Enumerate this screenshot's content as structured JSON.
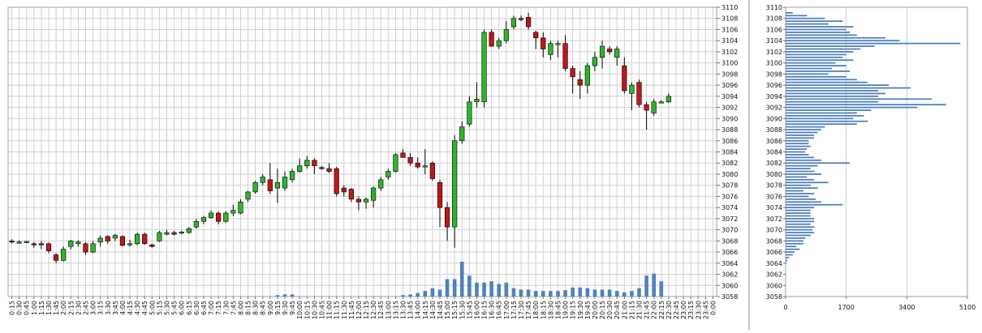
{
  "main_chart": {
    "y_ticks": [
      "3110",
      "3108",
      "3106",
      "3104",
      "3102",
      "3100",
      "3098",
      "3096",
      "3094",
      "3092",
      "3090",
      "3088",
      "3086",
      "3084",
      "3082",
      "3080",
      "3078",
      "3076",
      "3074",
      "3072",
      "3070",
      "3068",
      "3066",
      "3064",
      "3062",
      "3060",
      "3058"
    ],
    "x_tick_labels": [
      "0:15",
      "0:30",
      "0:45",
      "1:00",
      "1:15",
      "1:30",
      "1:45",
      "2:00",
      "2:15",
      "2:30",
      "2:45",
      "3:00",
      "3:15",
      "3:30",
      "3:45",
      "4:00",
      "4:15",
      "4:30",
      "4:45",
      "5:00",
      "5:15",
      "5:30",
      "5:45",
      "6:00",
      "6:15",
      "6:30",
      "6:45",
      "7:00",
      "7:15",
      "7:30",
      "7:45",
      "8:00",
      "8:15",
      "8:30",
      "8:45",
      "9:00",
      "9:15",
      "9:30",
      "9:45",
      "10:00",
      "10:15",
      "10:30",
      "10:45",
      "11:00",
      "11:15",
      "11:30",
      "11:45",
      "12:00",
      "12:15",
      "12:30",
      "12:45",
      "13:00",
      "13:15",
      "13:30",
      "13:45",
      "14:00",
      "14:15",
      "14:30",
      "14:45",
      "15:00",
      "15:15",
      "15:30",
      "15:45",
      "16:00",
      "16:15",
      "16:30",
      "16:45",
      "17:00",
      "17:15",
      "17:30",
      "17:45",
      "18:00",
      "18:15",
      "18:30",
      "18:45",
      "19:00",
      "19:15",
      "19:30",
      "19:45",
      "20:00",
      "20:15",
      "20:30",
      "20:45",
      "21:00",
      "21:15",
      "21:30",
      "21:45",
      "22:00",
      "22:15",
      "22:30",
      "22:45",
      "23:00",
      "23:15",
      "23:30",
      "23:45",
      "0:00"
    ]
  },
  "profile_chart": {
    "y_ticks": [
      "3110",
      "3108",
      "3106",
      "3104",
      "3102",
      "3100",
      "3098",
      "3096",
      "3094",
      "3092",
      "3090",
      "3088",
      "3086",
      "3084",
      "3082",
      "3080",
      "3078",
      "3076",
      "3074",
      "3072",
      "3070",
      "3068",
      "3066",
      "3064",
      "3062",
      "3060",
      "3058"
    ],
    "x_ticks": [
      "0",
      "1700",
      "3400",
      "5100"
    ]
  },
  "colors": {
    "up": "#2db52d",
    "down": "#c0161a",
    "volume": "#4f81bd",
    "grid": "#d0d0d0"
  },
  "chart_data": [
    {
      "type": "candlestick",
      "y_range": [
        3058,
        3110
      ],
      "candles": [
        {
          "x": "0:15",
          "o": 3068,
          "h": 3068.3,
          "l": 3067.5,
          "c": 3067.8
        },
        {
          "x": "0:30",
          "o": 3067.8,
          "h": 3068.1,
          "l": 3067.5,
          "c": 3067.8
        },
        {
          "x": "0:45",
          "o": 3067.8,
          "h": 3068,
          "l": 3067.6,
          "c": 3067.9
        },
        {
          "x": "1:00",
          "o": 3067.5,
          "h": 3067.8,
          "l": 3066.8,
          "c": 3067.3
        },
        {
          "x": "1:15",
          "o": 3067.5,
          "h": 3068,
          "l": 3066.5,
          "c": 3067.3
        },
        {
          "x": "1:30",
          "o": 3067.5,
          "h": 3067.7,
          "l": 3065.8,
          "c": 3066.2
        },
        {
          "x": "1:45",
          "o": 3065.5,
          "h": 3065.8,
          "l": 3064,
          "c": 3064.5
        },
        {
          "x": "2:00",
          "o": 3064.5,
          "h": 3067,
          "l": 3064.3,
          "c": 3066.5
        },
        {
          "x": "2:15",
          "o": 3067,
          "h": 3068.2,
          "l": 3066.5,
          "c": 3068
        },
        {
          "x": "2:30",
          "o": 3067.5,
          "h": 3068.1,
          "l": 3067,
          "c": 3067.8
        },
        {
          "x": "2:45",
          "o": 3067.5,
          "h": 3067.8,
          "l": 3065.5,
          "c": 3066
        },
        {
          "x": "3:00",
          "o": 3066,
          "h": 3068,
          "l": 3065.8,
          "c": 3067.5
        },
        {
          "x": "3:15",
          "o": 3067.8,
          "h": 3069,
          "l": 3067,
          "c": 3068.5
        },
        {
          "x": "3:30",
          "o": 3068.8,
          "h": 3069,
          "l": 3067.5,
          "c": 3068
        },
        {
          "x": "3:45",
          "o": 3068.5,
          "h": 3069.3,
          "l": 3068,
          "c": 3069
        },
        {
          "x": "4:00",
          "o": 3068.8,
          "h": 3069,
          "l": 3067,
          "c": 3067.2
        },
        {
          "x": "4:15",
          "o": 3067.5,
          "h": 3068.2,
          "l": 3067,
          "c": 3067.5
        },
        {
          "x": "4:30",
          "o": 3067.5,
          "h": 3069.5,
          "l": 3067.2,
          "c": 3069.2
        },
        {
          "x": "4:45",
          "o": 3069.2,
          "h": 3069.5,
          "l": 3067.3,
          "c": 3067.5
        },
        {
          "x": "5:00",
          "o": 3067.3,
          "h": 3067.5,
          "l": 3066.8,
          "c": 3067
        },
        {
          "x": "5:15",
          "o": 3068,
          "h": 3069.8,
          "l": 3067.8,
          "c": 3069.5
        },
        {
          "x": "5:30",
          "o": 3069.2,
          "h": 3070,
          "l": 3069,
          "c": 3069.5
        },
        {
          "x": "5:45",
          "o": 3069.5,
          "h": 3069.8,
          "l": 3069,
          "c": 3069.2
        },
        {
          "x": "6:00",
          "o": 3069.5,
          "h": 3069.8,
          "l": 3069.2,
          "c": 3069.6
        },
        {
          "x": "6:15",
          "o": 3069.5,
          "h": 3070.5,
          "l": 3069.3,
          "c": 3070.2
        },
        {
          "x": "6:30",
          "o": 3070.5,
          "h": 3072,
          "l": 3070.2,
          "c": 3071.5
        },
        {
          "x": "6:45",
          "o": 3071.5,
          "h": 3072.5,
          "l": 3071,
          "c": 3072.2
        },
        {
          "x": "7:00",
          "o": 3072.2,
          "h": 3073.5,
          "l": 3072,
          "c": 3073
        },
        {
          "x": "7:15",
          "o": 3073,
          "h": 3073.3,
          "l": 3071,
          "c": 3071.5
        },
        {
          "x": "7:30",
          "o": 3071.5,
          "h": 3073.3,
          "l": 3071.3,
          "c": 3073
        },
        {
          "x": "7:45",
          "o": 3073,
          "h": 3074.5,
          "l": 3072.5,
          "c": 3073.5
        },
        {
          "x": "8:00",
          "o": 3073,
          "h": 3075.5,
          "l": 3072.8,
          "c": 3075
        },
        {
          "x": "8:15",
          "o": 3075.5,
          "h": 3077,
          "l": 3075,
          "c": 3076.8
        },
        {
          "x": "8:30",
          "o": 3076.8,
          "h": 3078.8,
          "l": 3076.5,
          "c": 3078.5
        },
        {
          "x": "8:45",
          "o": 3078.5,
          "h": 3080,
          "l": 3078,
          "c": 3079.5
        },
        {
          "x": "9:00",
          "o": 3079,
          "h": 3082,
          "l": 3076.5,
          "c": 3077
        },
        {
          "x": "9:15",
          "o": 3077.5,
          "h": 3081,
          "l": 3074.8,
          "c": 3078.5
        },
        {
          "x": "9:30",
          "o": 3077.5,
          "h": 3080.5,
          "l": 3077,
          "c": 3079.5
        },
        {
          "x": "9:45",
          "o": 3079,
          "h": 3081,
          "l": 3078.5,
          "c": 3080.5
        },
        {
          "x": "10:00",
          "o": 3080.5,
          "h": 3082.8,
          "l": 3080.3,
          "c": 3081.5
        },
        {
          "x": "10:15",
          "o": 3081.5,
          "h": 3083.3,
          "l": 3081,
          "c": 3082.5
        },
        {
          "x": "10:30",
          "o": 3082.5,
          "h": 3082.8,
          "l": 3080,
          "c": 3081.5
        },
        {
          "x": "10:45",
          "o": 3081.2,
          "h": 3081.5,
          "l": 3080.8,
          "c": 3081
        },
        {
          "x": "11:00",
          "o": 3081,
          "h": 3082,
          "l": 3080.2,
          "c": 3080.5
        },
        {
          "x": "11:15",
          "o": 3081,
          "h": 3081.3,
          "l": 3076,
          "c": 3076.5
        },
        {
          "x": "11:30",
          "o": 3077.5,
          "h": 3078,
          "l": 3076,
          "c": 3076.8
        },
        {
          "x": "11:45",
          "o": 3077.3,
          "h": 3077.5,
          "l": 3075,
          "c": 3075.5
        },
        {
          "x": "12:00",
          "o": 3075.5,
          "h": 3076,
          "l": 3073.5,
          "c": 3075
        },
        {
          "x": "12:15",
          "o": 3075,
          "h": 3075.8,
          "l": 3073.8,
          "c": 3075.5
        },
        {
          "x": "12:30",
          "o": 3075.3,
          "h": 3077.8,
          "l": 3074,
          "c": 3077.5
        },
        {
          "x": "12:45",
          "o": 3077.5,
          "h": 3079.5,
          "l": 3077,
          "c": 3079
        },
        {
          "x": "13:00",
          "o": 3079.5,
          "h": 3081,
          "l": 3079,
          "c": 3080.5
        },
        {
          "x": "13:15",
          "o": 3080.5,
          "h": 3083.8,
          "l": 3080.3,
          "c": 3083.5
        },
        {
          "x": "13:30",
          "o": 3083.8,
          "h": 3084.5,
          "l": 3083,
          "c": 3083
        },
        {
          "x": "13:45",
          "o": 3083,
          "h": 3083.8,
          "l": 3081.5,
          "c": 3082
        },
        {
          "x": "14:00",
          "o": 3082,
          "h": 3083,
          "l": 3081,
          "c": 3081.3
        },
        {
          "x": "14:15",
          "o": 3081.5,
          "h": 3084.5,
          "l": 3080,
          "c": 3081.5
        },
        {
          "x": "14:30",
          "o": 3082,
          "h": 3082.3,
          "l": 3078.8,
          "c": 3079.2
        },
        {
          "x": "14:45",
          "o": 3078.5,
          "h": 3079,
          "l": 3070.5,
          "c": 3074
        },
        {
          "x": "15:00",
          "o": 3074,
          "h": 3075,
          "l": 3068,
          "c": 3070.5
        },
        {
          "x": "15:15",
          "o": 3070.5,
          "h": 3087,
          "l": 3066.8,
          "c": 3086
        },
        {
          "x": "15:30",
          "o": 3086,
          "h": 3089.5,
          "l": 3085.5,
          "c": 3088.5
        },
        {
          "x": "15:45",
          "o": 3089,
          "h": 3094,
          "l": 3088.5,
          "c": 3093
        },
        {
          "x": "16:00",
          "o": 3093,
          "h": 3096.5,
          "l": 3092,
          "c": 3093.5
        },
        {
          "x": "16:15",
          "o": 3093,
          "h": 3106,
          "l": 3092,
          "c": 3105.5
        },
        {
          "x": "16:30",
          "o": 3105.5,
          "h": 3106,
          "l": 3103,
          "c": 3103
        },
        {
          "x": "16:45",
          "o": 3103,
          "h": 3104.5,
          "l": 3102.5,
          "c": 3104
        },
        {
          "x": "17:00",
          "o": 3104,
          "h": 3107.5,
          "l": 3103.5,
          "c": 3106
        },
        {
          "x": "17:15",
          "o": 3106.5,
          "h": 3108.5,
          "l": 3106,
          "c": 3108
        },
        {
          "x": "17:30",
          "o": 3108,
          "h": 3108.5,
          "l": 3107.5,
          "c": 3107.8
        },
        {
          "x": "17:45",
          "o": 3108.2,
          "h": 3109,
          "l": 3106,
          "c": 3106.5
        },
        {
          "x": "18:00",
          "o": 3105.5,
          "h": 3105.8,
          "l": 3102.5,
          "c": 3104.5
        },
        {
          "x": "18:15",
          "o": 3104.5,
          "h": 3105.5,
          "l": 3101,
          "c": 3102.5
        },
        {
          "x": "18:30",
          "o": 3101.5,
          "h": 3104,
          "l": 3100.5,
          "c": 3103.5
        },
        {
          "x": "18:45",
          "o": 3103.5,
          "h": 3104,
          "l": 3101,
          "c": 3103.5
        },
        {
          "x": "19:00",
          "o": 3103.5,
          "h": 3105,
          "l": 3098.5,
          "c": 3099
        },
        {
          "x": "19:15",
          "o": 3099,
          "h": 3099.5,
          "l": 3094.5,
          "c": 3097.5
        },
        {
          "x": "19:30",
          "o": 3097,
          "h": 3098.5,
          "l": 3093.5,
          "c": 3096
        },
        {
          "x": "19:45",
          "o": 3096,
          "h": 3100,
          "l": 3094.5,
          "c": 3099.5
        },
        {
          "x": "20:00",
          "o": 3099.5,
          "h": 3102,
          "l": 3098.5,
          "c": 3101
        },
        {
          "x": "20:15",
          "o": 3101,
          "h": 3104,
          "l": 3099,
          "c": 3103
        },
        {
          "x": "20:30",
          "o": 3102.5,
          "h": 3103,
          "l": 3101.5,
          "c": 3102
        },
        {
          "x": "20:45",
          "o": 3101,
          "h": 3103,
          "l": 3099.5,
          "c": 3102.5
        },
        {
          "x": "21:00",
          "o": 3099.5,
          "h": 3101,
          "l": 3094.5,
          "c": 3095
        },
        {
          "x": "21:15",
          "o": 3094.5,
          "h": 3096.5,
          "l": 3091.5,
          "c": 3096
        },
        {
          "x": "21:30",
          "o": 3096.5,
          "h": 3097,
          "l": 3092,
          "c": 3092.5
        },
        {
          "x": "21:45",
          "o": 3092.5,
          "h": 3093,
          "l": 3088,
          "c": 3091.5
        },
        {
          "x": "22:00",
          "o": 3091,
          "h": 3093.5,
          "l": 3090.5,
          "c": 3093
        },
        {
          "x": "22:15",
          "o": 3093,
          "h": 3093.3,
          "l": 3092.8,
          "c": 3093
        },
        {
          "x": "22:30",
          "o": 3093,
          "h": 3094.5,
          "l": 3092.8,
          "c": 3094
        }
      ]
    },
    {
      "type": "bar",
      "series": [
        {
          "values": [
            0,
            0,
            0,
            0,
            0,
            0,
            0,
            0,
            0,
            0,
            0,
            0,
            0,
            0,
            0,
            0,
            0,
            0,
            0,
            0,
            0,
            0,
            0,
            0,
            0,
            0,
            0,
            0,
            0,
            0,
            0,
            0,
            0,
            0,
            0,
            0,
            0.02,
            0.03,
            0.03,
            0,
            0,
            0,
            0,
            0,
            0,
            0,
            0,
            0,
            0,
            0,
            0,
            0,
            0,
            0.02,
            0.03,
            0.05,
            0.08,
            0.12,
            0.1,
            0.25,
            0.25,
            0.5,
            0.3,
            0.2,
            0.2,
            0.22,
            0.18,
            0.2,
            0.12,
            0.1,
            0.1,
            0.08,
            0.08,
            0.08,
            0.08,
            0.09,
            0.13,
            0.13,
            0.12,
            0.1,
            0.1,
            0.1,
            0.08,
            0.06,
            0.08,
            0.12,
            0.3,
            0.33,
            0.22,
            0,
            0,
            0,
            0,
            0,
            0,
            0
          ]
        }
      ]
    },
    {
      "type": "bar",
      "orientation": "horizontal",
      "y_range": [
        3058,
        3110
      ],
      "x_range": [
        0,
        5100
      ],
      "categories": [
        3109.5,
        3109,
        3108.5,
        3108,
        3107.5,
        3107,
        3106.5,
        3106,
        3105.5,
        3105,
        3104.5,
        3104,
        3103.5,
        3103,
        3102.5,
        3102,
        3101.5,
        3101,
        3100.5,
        3100,
        3099.5,
        3099,
        3098.5,
        3098,
        3097.5,
        3097,
        3096.5,
        3096,
        3095.5,
        3095,
        3094.5,
        3094,
        3093.5,
        3093,
        3092.5,
        3092,
        3091.5,
        3091,
        3090.5,
        3090,
        3089.5,
        3089,
        3088.5,
        3088,
        3087.5,
        3087,
        3086.5,
        3086,
        3085.5,
        3085,
        3084.5,
        3084,
        3083.5,
        3083,
        3082.5,
        3082,
        3081.5,
        3081,
        3080.5,
        3080,
        3079.5,
        3079,
        3078.5,
        3078,
        3077.5,
        3077,
        3076.5,
        3076,
        3075.5,
        3075,
        3074.5,
        3074,
        3073.5,
        3073,
        3072.5,
        3072,
        3071.5,
        3071,
        3070.5,
        3070,
        3069.5,
        3069,
        3068.5,
        3068,
        3067.5,
        3067,
        3066.5,
        3066,
        3065.5,
        3065,
        3064.5,
        3064
      ],
      "values": [
        0,
        200,
        600,
        1100,
        1600,
        1200,
        1900,
        1700,
        1800,
        2000,
        2800,
        3200,
        4900,
        2500,
        2100,
        1900,
        1700,
        1600,
        1900,
        1400,
        1700,
        1300,
        1800,
        1200,
        1700,
        2000,
        2300,
        2900,
        3500,
        2600,
        2800,
        2600,
        4100,
        2600,
        4500,
        3700,
        2400,
        2000,
        2200,
        1900,
        2300,
        2000,
        1100,
        1000,
        900,
        800,
        800,
        650,
        650,
        700,
        600,
        550,
        650,
        800,
        1000,
        1800,
        900,
        700,
        800,
        1000,
        600,
        800,
        1200,
        700,
        900,
        500,
        800,
        650,
        850,
        1000,
        1600,
        800,
        700,
        700,
        700,
        800,
        800,
        700,
        800,
        750,
        800,
        700,
        550,
        500,
        500,
        300,
        400,
        250,
        200,
        100,
        50,
        20
      ]
    }
  ]
}
